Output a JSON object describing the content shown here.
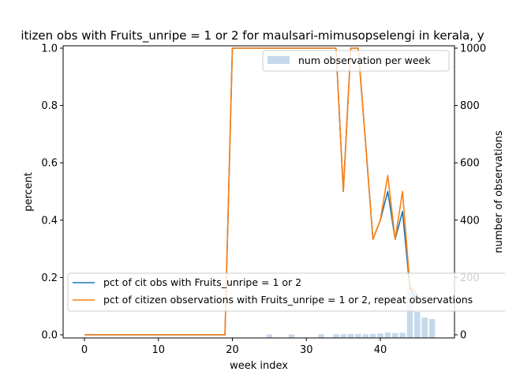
{
  "chart_data": {
    "type": "line",
    "title": "itizen obs with Fruits_unripe = 1 or 2 for maulsari-mimusopselengi in kerala, y",
    "xlabel": "week index",
    "ylabel": "percent",
    "y2label": "number of observations",
    "xlim": [
      -3,
      50
    ],
    "ylim": [
      0,
      1.0
    ],
    "y2lim": [
      0,
      1000
    ],
    "xticks": [
      "0",
      "10",
      "20",
      "30",
      "40"
    ],
    "yticks": [
      "0.0",
      "0.2",
      "0.4",
      "0.6",
      "0.8",
      "1.0"
    ],
    "y2ticks": [
      "0",
      "200",
      "400",
      "600",
      "800",
      "1000"
    ],
    "colors": {
      "series1": "#1f77b4",
      "series2": "#ff7f0e",
      "bars": "#c6d9ec"
    },
    "series": [
      {
        "name": "pct of cit obs with Fruits_unripe = 1 or 2",
        "x": [
          0,
          1,
          2,
          3,
          4,
          5,
          6,
          7,
          8,
          9,
          10,
          11,
          12,
          13,
          14,
          15,
          16,
          17,
          18,
          19,
          20,
          21,
          22,
          23,
          24,
          25,
          26,
          27,
          28,
          29,
          30,
          31,
          32,
          33,
          34,
          35,
          36,
          37,
          38,
          39,
          40,
          41,
          42,
          43,
          44,
          45
        ],
        "values": [
          0,
          0,
          0,
          0,
          0,
          0,
          0,
          0,
          0,
          0,
          0,
          0,
          0,
          0,
          0,
          0,
          0,
          0,
          0,
          0,
          1,
          1,
          1,
          1,
          1,
          1,
          1,
          1,
          1,
          1,
          1,
          1,
          1,
          1,
          1,
          0.5,
          1,
          1,
          0.67,
          0.333,
          0.4,
          0.5,
          0.333,
          0.43,
          0.16,
          0.12
        ]
      },
      {
        "name": "pct of citizen observations with Fruits_unripe = 1 or 2, repeat observations",
        "x": [
          0,
          1,
          2,
          3,
          4,
          5,
          6,
          7,
          8,
          9,
          10,
          11,
          12,
          13,
          14,
          15,
          16,
          17,
          18,
          19,
          20,
          21,
          22,
          23,
          24,
          25,
          26,
          27,
          28,
          29,
          30,
          31,
          32,
          33,
          34,
          35,
          36,
          37,
          38,
          39,
          40,
          41,
          42,
          43,
          44,
          45
        ],
        "values": [
          0,
          0,
          0,
          0,
          0,
          0,
          0,
          0,
          0,
          0,
          0,
          0,
          0,
          0,
          0,
          0,
          0,
          0,
          0,
          0,
          1,
          1,
          1,
          1,
          1,
          1,
          1,
          1,
          1,
          1,
          1,
          1,
          1,
          1,
          1,
          0.5,
          1,
          1,
          0.67,
          0.333,
          0.4,
          0.556,
          0.333,
          0.5,
          0.17,
          0.14
        ],
        "tail_x": [
          45,
          46,
          47
        ],
        "tail_values": [
          0.12,
          0.135,
          0.125
        ]
      }
    ],
    "bars": {
      "name": "num observation per week",
      "x": [
        25,
        28,
        32,
        34,
        35,
        36,
        37,
        38,
        39,
        40,
        41,
        42,
        43,
        44,
        45,
        46,
        47
      ],
      "values": [
        1,
        1,
        2,
        2,
        2,
        3,
        3,
        2,
        3,
        5,
        8,
        6,
        7,
        150,
        80,
        60,
        55
      ]
    },
    "legend_top": "top-right",
    "legend_bottom": "lower-left",
    "grid": false
  }
}
